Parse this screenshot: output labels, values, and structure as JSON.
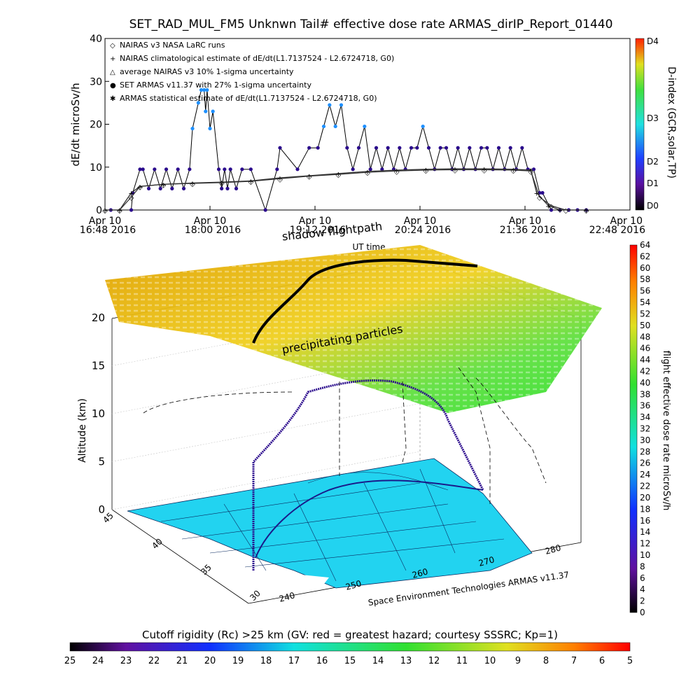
{
  "title": "SET_RAD_MUL_FM5 Unknwn Tail#  effective dose rate ARMAS_dirIP_Report_01440",
  "top_chart": {
    "ylabel": "dE/dt microSv/h",
    "yticks": [
      "0",
      "10",
      "20",
      "30",
      "40"
    ],
    "ylim": [
      0,
      40
    ],
    "xticks": [
      {
        "l1": "Apr 10",
        "l2": "16:48 2016"
      },
      {
        "l1": "Apr 10",
        "l2": "18:00 2016"
      },
      {
        "l1": "Apr 10",
        "l2": "19:12 2016"
      },
      {
        "l1": "Apr 10",
        "l2": "20:24 2016"
      },
      {
        "l1": "Apr 10",
        "l2": "21:36 2016"
      },
      {
        "l1": "Apr 10",
        "l2": "22:48 2016"
      }
    ],
    "legend": [
      {
        "symbol": "◇",
        "text": "NAIRAS v3 NASA LaRC runs"
      },
      {
        "symbol": "+",
        "text": "NAIRAS climatological estimate of dE/dt(L1.7137524 - L2.6724718, G0)"
      },
      {
        "symbol": "△",
        "text": "average NAIRAS v3 10% 1-sigma uncertainty"
      },
      {
        "symbol": "●",
        "text": "SET ARMAS v11.37 with 27% 1-sigma uncertainty"
      },
      {
        "symbol": "✱",
        "text": "ARMAS statistical estimate of dE/dt(L1.7137524 - L2.6724718, G0)"
      }
    ],
    "dindex_label": "D-index (GCR,solar,TP)",
    "dindex_ticks": [
      "D0",
      "D1",
      "D2",
      "D3",
      "D4"
    ]
  },
  "chart_data": [
    {
      "type": "line",
      "title": "SET_RAD_MUL_FM5 Unknwn Tail#  effective dose rate ARMAS_dirIP_Report_01440",
      "xlabel": "",
      "ylabel": "dE/dt microSv/h",
      "ylim": [
        0,
        40
      ],
      "x_unit": "minutes after Apr 10 16:48 2016",
      "series": [
        {
          "name": "SET ARMAS v11.37 with 27% 1-sigma uncertainty",
          "x": [
            4,
            18,
            19,
            24,
            26,
            30,
            34,
            38,
            42,
            46,
            50,
            54,
            58,
            60,
            64,
            66,
            68,
            69,
            70,
            72,
            74,
            78,
            80,
            82,
            84,
            86,
            90,
            94,
            100,
            110,
            118,
            120,
            132,
            140,
            146,
            150,
            154,
            158,
            162,
            166,
            170,
            174,
            178,
            182,
            186,
            190,
            194,
            198,
            202,
            206,
            210,
            214,
            218,
            222,
            226,
            230,
            234,
            238,
            242,
            246,
            250,
            254,
            258,
            262,
            266,
            270,
            274,
            278,
            282,
            286,
            290,
            294,
            298,
            300,
            306,
            312,
            318,
            324,
            330
          ],
          "y": [
            0,
            0,
            4,
            9.5,
            9.5,
            5,
            9.5,
            5,
            9.5,
            5,
            9.5,
            5,
            9.5,
            19,
            25,
            28,
            28,
            23,
            28,
            19,
            23,
            9.5,
            5,
            9.5,
            5,
            9.5,
            5,
            9.5,
            9.5,
            0,
            9.5,
            14.5,
            9.5,
            14.5,
            14.5,
            19.5,
            24.5,
            19.5,
            24.5,
            14.5,
            9.5,
            14.5,
            19.5,
            9.5,
            14.5,
            9.5,
            14.5,
            9.5,
            14.5,
            9.5,
            14.5,
            14.5,
            19.5,
            14.5,
            9.5,
            14.5,
            14.5,
            9.5,
            14.5,
            9.5,
            14.5,
            9.5,
            14.5,
            14.5,
            9.5,
            14.5,
            9.5,
            14.5,
            9.5,
            14.5,
            9.5,
            9.5,
            4,
            4,
            0,
            0,
            0,
            0,
            0
          ]
        },
        {
          "name": "NAIRAS climatological estimate of dE/dt(L1.7137524 - L2.6724718, G0)",
          "x": [
            0,
            10,
            18,
            24,
            40,
            60,
            80,
            100,
            120,
            140,
            160,
            180,
            200,
            220,
            240,
            260,
            280,
            292,
            296,
            304,
            312,
            330
          ],
          "y": [
            0,
            0,
            4,
            5.5,
            6,
            6.3,
            6.5,
            6.8,
            7.5,
            8,
            8.5,
            9,
            9.3,
            9.5,
            9.6,
            9.6,
            9.5,
            9.3,
            4,
            1,
            0,
            0
          ]
        },
        {
          "name": "NAIRAS v3 NASA LaRC runs",
          "x": [
            0,
            10,
            18,
            24,
            40,
            60,
            80,
            100,
            120,
            140,
            160,
            180,
            200,
            220,
            240,
            260,
            280,
            292,
            298,
            306,
            316,
            330
          ],
          "y": [
            0,
            0,
            3,
            5.5,
            6,
            6.2,
            6.4,
            6.7,
            7.3,
            7.9,
            8.3,
            8.8,
            9.1,
            9.3,
            9.4,
            9.4,
            9.3,
            9.1,
            3,
            1,
            0,
            0
          ]
        }
      ]
    },
    {
      "type": "table",
      "title": "shadow flightpath",
      "zlabel": "Altitude (km)",
      "zticks": [
        "0",
        "5",
        "10",
        "15",
        "20"
      ],
      "lat_ticks": [
        "45",
        "40",
        "35",
        "30"
      ],
      "lon_ticks": [
        "240",
        "250",
        "260",
        "270",
        "280"
      ],
      "annotations": [
        "UT time",
        "precipitating particles"
      ],
      "credit": "Space Environment Technologies ARMAS v11.37"
    }
  ],
  "right_colorbar": {
    "label": "flight effective dose rate microSv/h",
    "ticks": [
      "0",
      "2",
      "4",
      "6",
      "8",
      "10",
      "12",
      "14",
      "16",
      "18",
      "20",
      "22",
      "24",
      "26",
      "28",
      "30",
      "32",
      "34",
      "36",
      "38",
      "40",
      "42",
      "44",
      "46",
      "48",
      "50",
      "52",
      "54",
      "56",
      "58",
      "60",
      "62",
      "64"
    ]
  },
  "bottom_colorbar": {
    "label": "Cutoff rigidity (Rc) >25 km (GV: red = greatest hazard; courtesy SSSRC; Kp=1)",
    "ticks": [
      "25",
      "24",
      "23",
      "22",
      "21",
      "20",
      "19",
      "18",
      "17",
      "16",
      "15",
      "14",
      "13",
      "12",
      "11",
      "10",
      "9",
      "8",
      "7",
      "6",
      "5"
    ]
  },
  "colors": {
    "armas_points": "#2a0a8c",
    "armas_high": "#1e90ff",
    "map_fill": "#22d3f0",
    "grid": "#cccccc"
  }
}
